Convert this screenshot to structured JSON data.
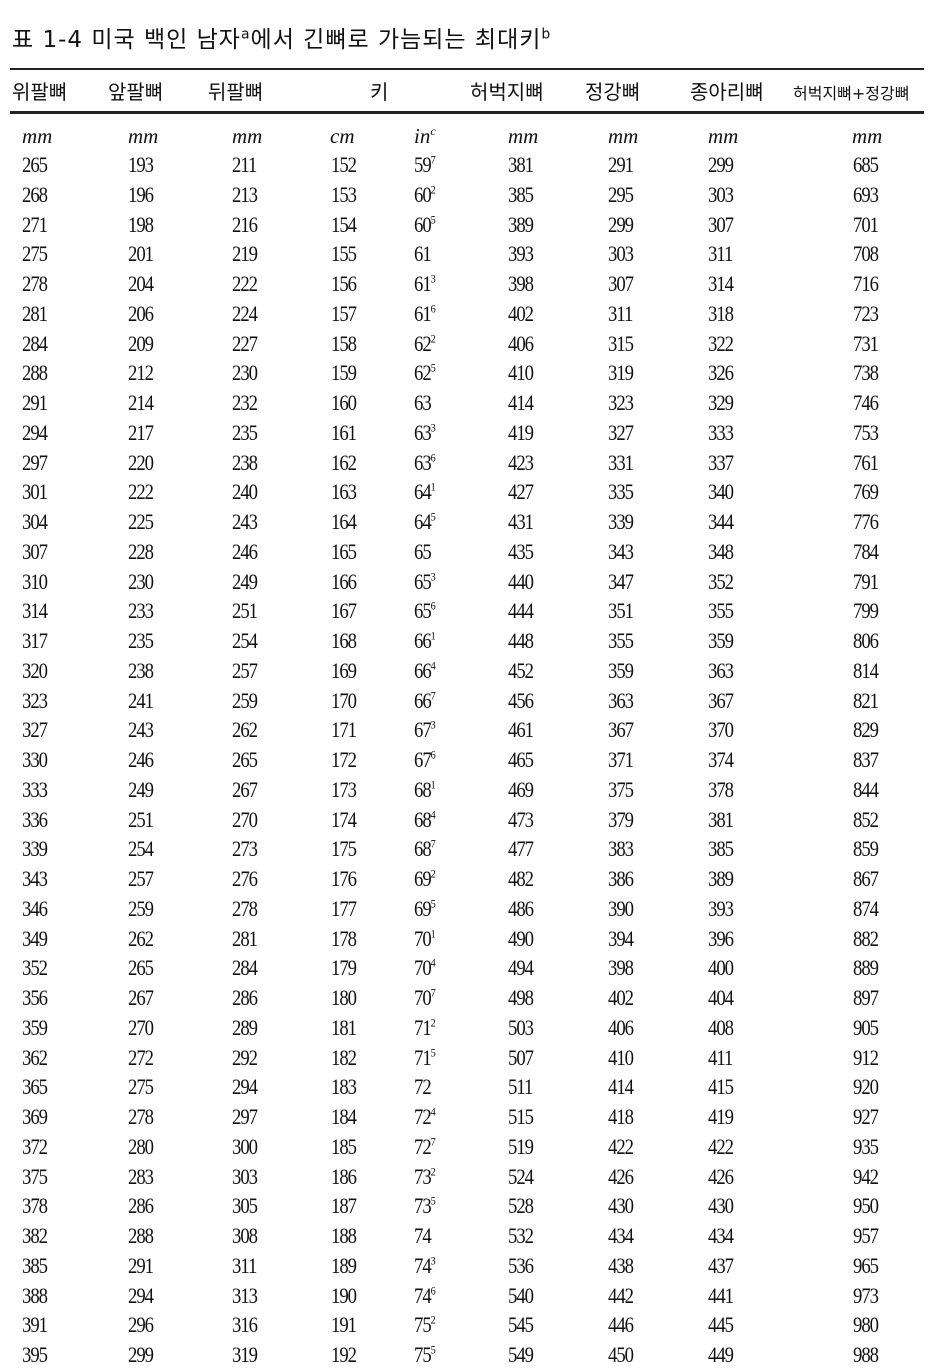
{
  "title": {
    "text": "표 1-4  미국 백인 남자",
    "sup_a": "a",
    "text2": "에서 긴뼈로 가늠되는 최대키",
    "sup_b": "b"
  },
  "headers": [
    "위팔뼈",
    "앞팔뼈",
    "뒤팔뼈",
    "키",
    "허벅지뼈",
    "정강뼈",
    "종아리뼈",
    "허벅지뼈+정강뼈"
  ],
  "units": {
    "humerus": "mm",
    "radius": "mm",
    "ulna": "mm",
    "cm": "cm",
    "in": "in",
    "in_sup": "c",
    "femur": "mm",
    "tibia": "mm",
    "fibula": "mm",
    "femur_tibia": "mm"
  },
  "rows": [
    [
      "265",
      "193",
      "211",
      "152",
      "59",
      "7",
      "381",
      "291",
      "299",
      "685"
    ],
    [
      "268",
      "196",
      "213",
      "153",
      "60",
      "2",
      "385",
      "295",
      "303",
      "693"
    ],
    [
      "271",
      "198",
      "216",
      "154",
      "60",
      "5",
      "389",
      "299",
      "307",
      "701"
    ],
    [
      "275",
      "201",
      "219",
      "155",
      "61",
      "",
      "393",
      "303",
      "311",
      "708"
    ],
    [
      "278",
      "204",
      "222",
      "156",
      "61",
      "3",
      "398",
      "307",
      "314",
      "716"
    ],
    [
      "281",
      "206",
      "224",
      "157",
      "61",
      "6",
      "402",
      "311",
      "318",
      "723"
    ],
    [
      "284",
      "209",
      "227",
      "158",
      "62",
      "2",
      "406",
      "315",
      "322",
      "731"
    ],
    [
      "288",
      "212",
      "230",
      "159",
      "62",
      "5",
      "410",
      "319",
      "326",
      "738"
    ],
    [
      "291",
      "214",
      "232",
      "160",
      "63",
      "",
      "414",
      "323",
      "329",
      "746"
    ],
    [
      "294",
      "217",
      "235",
      "161",
      "63",
      "3",
      "419",
      "327",
      "333",
      "753"
    ],
    [
      "297",
      "220",
      "238",
      "162",
      "63",
      "6",
      "423",
      "331",
      "337",
      "761"
    ],
    [
      "301",
      "222",
      "240",
      "163",
      "64",
      "1",
      "427",
      "335",
      "340",
      "769"
    ],
    [
      "304",
      "225",
      "243",
      "164",
      "64",
      "5",
      "431",
      "339",
      "344",
      "776"
    ],
    [
      "307",
      "228",
      "246",
      "165",
      "65",
      "",
      "435",
      "343",
      "348",
      "784"
    ],
    [
      "310",
      "230",
      "249",
      "166",
      "65",
      "3",
      "440",
      "347",
      "352",
      "791"
    ],
    [
      "314",
      "233",
      "251",
      "167",
      "65",
      "6",
      "444",
      "351",
      "355",
      "799"
    ],
    [
      "317",
      "235",
      "254",
      "168",
      "66",
      "1",
      "448",
      "355",
      "359",
      "806"
    ],
    [
      "320",
      "238",
      "257",
      "169",
      "66",
      "4",
      "452",
      "359",
      "363",
      "814"
    ],
    [
      "323",
      "241",
      "259",
      "170",
      "66",
      "7",
      "456",
      "363",
      "367",
      "821"
    ],
    [
      "327",
      "243",
      "262",
      "171",
      "67",
      "3",
      "461",
      "367",
      "370",
      "829"
    ],
    [
      "330",
      "246",
      "265",
      "172",
      "67",
      "6",
      "465",
      "371",
      "374",
      "837"
    ],
    [
      "333",
      "249",
      "267",
      "173",
      "68",
      "1",
      "469",
      "375",
      "378",
      "844"
    ],
    [
      "336",
      "251",
      "270",
      "174",
      "68",
      "4",
      "473",
      "379",
      "381",
      "852"
    ],
    [
      "339",
      "254",
      "273",
      "175",
      "68",
      "7",
      "477",
      "383",
      "385",
      "859"
    ],
    [
      "343",
      "257",
      "276",
      "176",
      "69",
      "2",
      "482",
      "386",
      "389",
      "867"
    ],
    [
      "346",
      "259",
      "278",
      "177",
      "69",
      "5",
      "486",
      "390",
      "393",
      "874"
    ],
    [
      "349",
      "262",
      "281",
      "178",
      "70",
      "1",
      "490",
      "394",
      "396",
      "882"
    ],
    [
      "352",
      "265",
      "284",
      "179",
      "70",
      "4",
      "494",
      "398",
      "400",
      "889"
    ],
    [
      "356",
      "267",
      "286",
      "180",
      "70",
      "7",
      "498",
      "402",
      "404",
      "897"
    ],
    [
      "359",
      "270",
      "289",
      "181",
      "71",
      "2",
      "503",
      "406",
      "408",
      "905"
    ],
    [
      "362",
      "272",
      "292",
      "182",
      "71",
      "5",
      "507",
      "410",
      "411",
      "912"
    ],
    [
      "365",
      "275",
      "294",
      "183",
      "72",
      "",
      "511",
      "414",
      "415",
      "920"
    ],
    [
      "369",
      "278",
      "297",
      "184",
      "72",
      "4",
      "515",
      "418",
      "419",
      "927"
    ],
    [
      "372",
      "280",
      "300",
      "185",
      "72",
      "7",
      "519",
      "422",
      "422",
      "935"
    ],
    [
      "375",
      "283",
      "303",
      "186",
      "73",
      "2",
      "524",
      "426",
      "426",
      "942"
    ],
    [
      "378",
      "286",
      "305",
      "187",
      "73",
      "5",
      "528",
      "430",
      "430",
      "950"
    ],
    [
      "382",
      "288",
      "308",
      "188",
      "74",
      "",
      "532",
      "434",
      "434",
      "957"
    ],
    [
      "385",
      "291",
      "311",
      "189",
      "74",
      "3",
      "536",
      "438",
      "437",
      "965"
    ],
    [
      "388",
      "294",
      "313",
      "190",
      "74",
      "6",
      "540",
      "442",
      "441",
      "973"
    ],
    [
      "391",
      "296",
      "316",
      "191",
      "75",
      "2",
      "545",
      "446",
      "445",
      "980"
    ],
    [
      "395",
      "299",
      "319",
      "192",
      "75",
      "5",
      "549",
      "450",
      "449",
      "988"
    ]
  ]
}
